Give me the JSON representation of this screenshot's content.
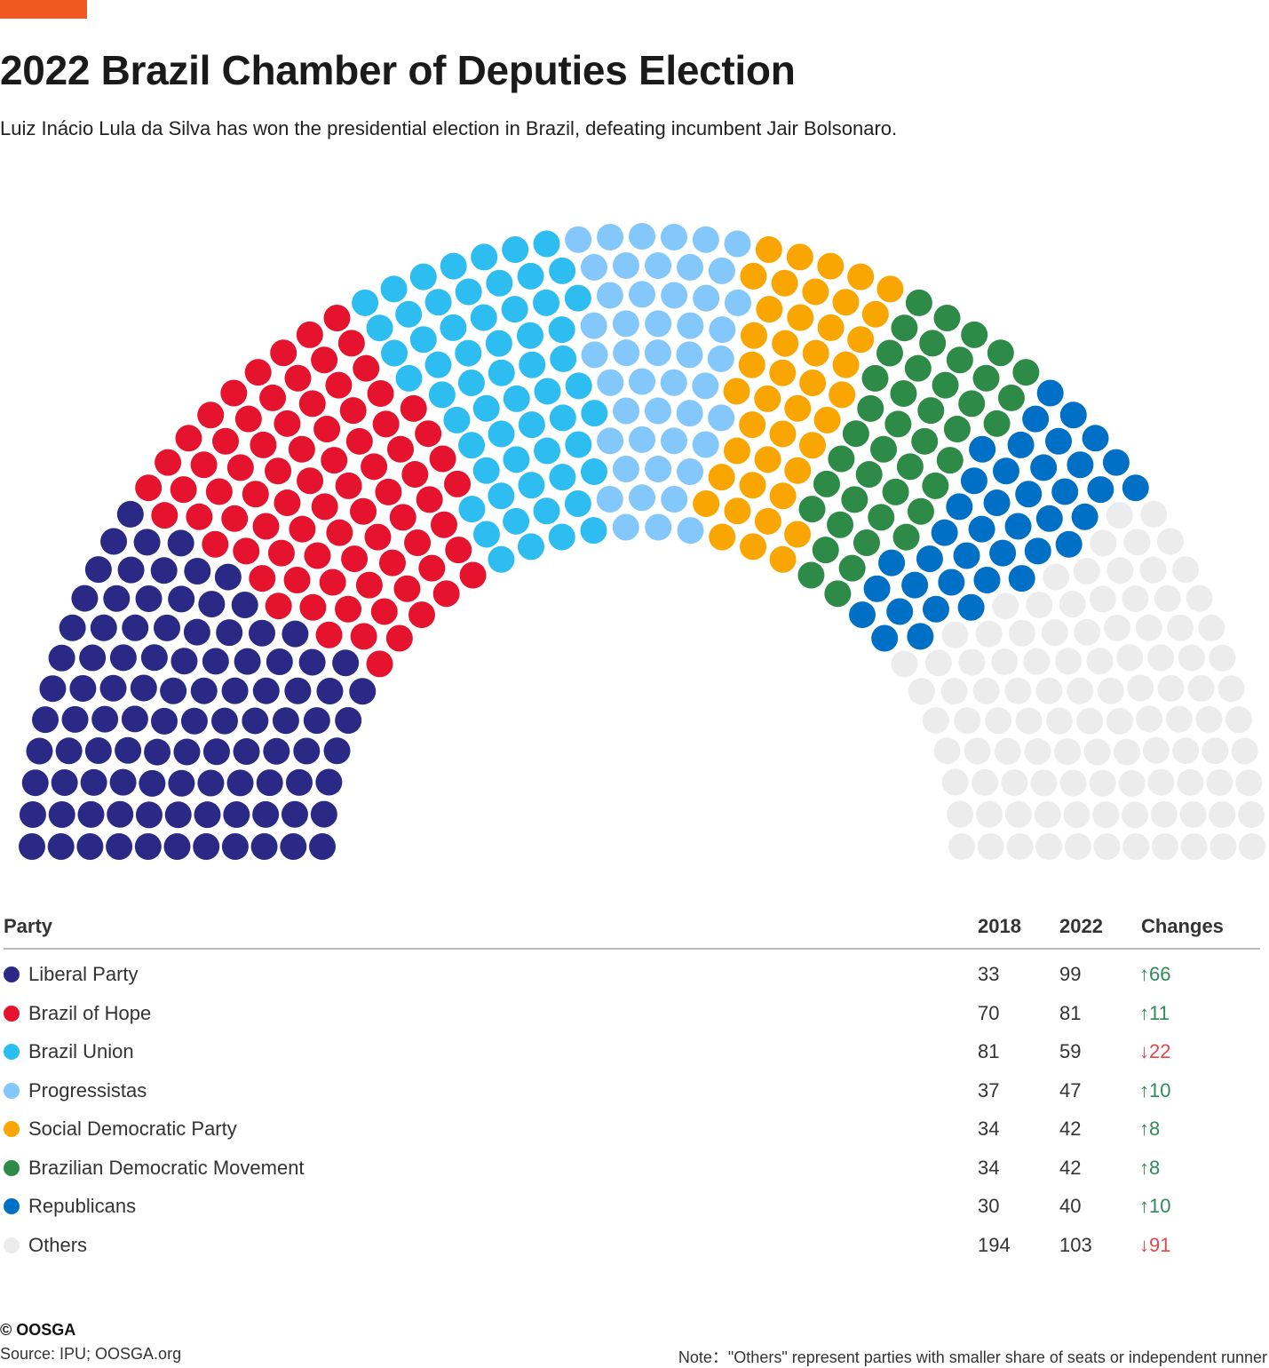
{
  "title": "2022 Brazil Chamber of Deputies Election",
  "subtitle": "Luiz Inácio Lula da Silva has won the presidential election in Brazil, defeating incumbent Jair Bolsonaro.",
  "chart_data": {
    "type": "parliament",
    "total_seats": 513,
    "parties": [
      {
        "name": "Liberal Party",
        "seats_2018": 33,
        "seats_2022": 99,
        "change": "66",
        "direction": "up",
        "color": "#2a2a86"
      },
      {
        "name": "Brazil of Hope",
        "seats_2018": 70,
        "seats_2022": 81,
        "change": "11",
        "direction": "up",
        "color": "#e5132d"
      },
      {
        "name": "Brazil Union",
        "seats_2018": 81,
        "seats_2022": 59,
        "change": "22",
        "direction": "down",
        "color": "#2ebdf0"
      },
      {
        "name": "Progressistas",
        "seats_2018": 37,
        "seats_2022": 47,
        "change": "10",
        "direction": "up",
        "color": "#84c7fb"
      },
      {
        "name": "Social Democratic Party",
        "seats_2018": 34,
        "seats_2022": 42,
        "change": "8",
        "direction": "up",
        "color": "#f9a602"
      },
      {
        "name": "Brazilian Democratic Movement",
        "seats_2018": 34,
        "seats_2022": 42,
        "change": "8",
        "direction": "up",
        "color": "#2e8b47"
      },
      {
        "name": "Republicans",
        "seats_2018": 30,
        "seats_2022": 40,
        "change": "10",
        "direction": "up",
        "color": "#0070c6"
      },
      {
        "name": "Others",
        "seats_2018": 194,
        "seats_2022": 103,
        "change": "91",
        "direction": "down",
        "color": "#ececec"
      }
    ]
  },
  "table": {
    "col_party": "Party",
    "col_2018": "2018",
    "col_2022": "2022",
    "col_changes": "Changes"
  },
  "footer": {
    "brand": "© OOSGA",
    "source": "Source: IPU; OOSGA.org",
    "note": "Note：\"Others\" represent parties with smaller share of seats or independent runner"
  }
}
